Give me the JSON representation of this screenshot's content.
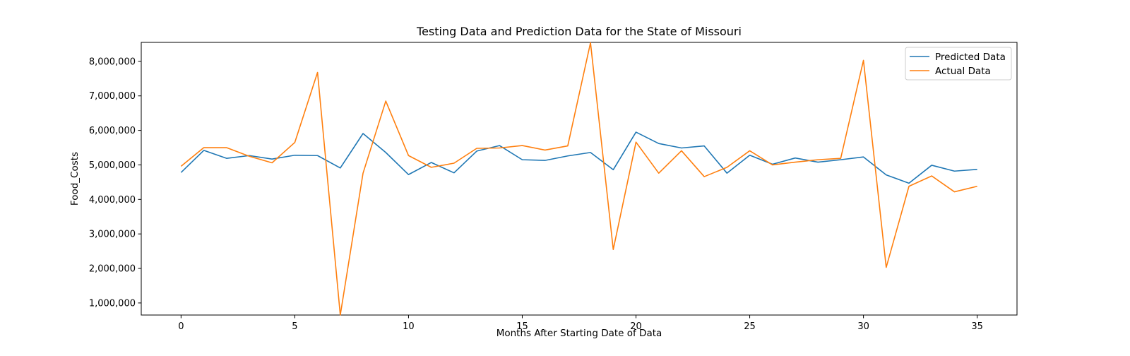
{
  "chart_data": {
    "type": "line",
    "title": "Testing Data and Prediction Data for the State of Missouri",
    "xlabel": "Months After Starting Date of Data",
    "ylabel": "Food_Costs",
    "xlim": [
      -1.75,
      36.75
    ],
    "ylim": [
      650000,
      8550000
    ],
    "xticks": [
      0,
      5,
      10,
      15,
      20,
      25,
      30,
      35
    ],
    "yticks": [
      1000000,
      2000000,
      3000000,
      4000000,
      5000000,
      6000000,
      7000000,
      8000000
    ],
    "xtick_labels": [
      "0",
      "5",
      "10",
      "15",
      "20",
      "25",
      "30",
      "35"
    ],
    "ytick_labels": [
      "1,000,000",
      "2,000,000",
      "3,000,000",
      "4,000,000",
      "5,000,000",
      "6,000,000",
      "7,000,000",
      "8,000,000"
    ],
    "grid": false,
    "legend": "top-right",
    "x": [
      0,
      1,
      2,
      3,
      4,
      5,
      6,
      7,
      8,
      9,
      10,
      11,
      12,
      13,
      14,
      15,
      16,
      17,
      18,
      19,
      20,
      21,
      22,
      23,
      24,
      25,
      26,
      27,
      28,
      29,
      30,
      31,
      32,
      33,
      34,
      35
    ],
    "series": [
      {
        "name": "Predicted Data",
        "color": "#1f77b4",
        "values": [
          4780000,
          5420000,
          5190000,
          5270000,
          5170000,
          5280000,
          5270000,
          4910000,
          5910000,
          5360000,
          4720000,
          5070000,
          4770000,
          5400000,
          5560000,
          5150000,
          5130000,
          5260000,
          5360000,
          4860000,
          5950000,
          5620000,
          5490000,
          5550000,
          4760000,
          5280000,
          5020000,
          5200000,
          5080000,
          5150000,
          5230000,
          4710000,
          4470000,
          4990000,
          4820000,
          4870000
        ]
      },
      {
        "name": "Actual Data",
        "color": "#ff7f0e",
        "values": [
          4960000,
          5500000,
          5500000,
          5250000,
          5060000,
          5650000,
          7680000,
          650000,
          4760000,
          6850000,
          5270000,
          4930000,
          5050000,
          5480000,
          5490000,
          5560000,
          5430000,
          5550000,
          8540000,
          2550000,
          5660000,
          4760000,
          5410000,
          4660000,
          4930000,
          5410000,
          5000000,
          5080000,
          5150000,
          5190000,
          8030000,
          2030000,
          4380000,
          4680000,
          4220000,
          4380000
        ]
      }
    ]
  }
}
